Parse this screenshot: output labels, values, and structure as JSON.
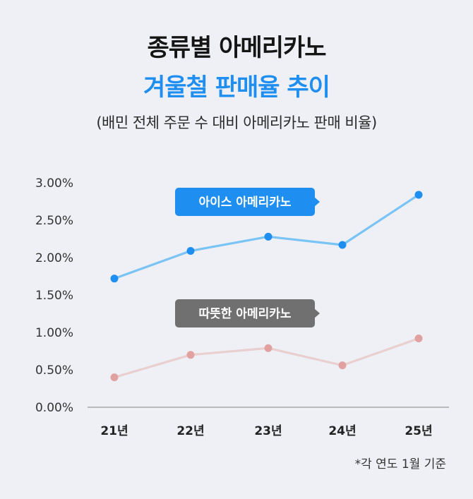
{
  "header": {
    "title_line1": "종류별 아메리카노",
    "title_line2": "겨울철 판매율 추이",
    "subtitle": "(배민 전체 주문 수 대비 아메리카노 판매 비율)"
  },
  "footnote": "*각 연도 1월 기준",
  "chart_data": {
    "type": "line",
    "categories": [
      "21년",
      "22년",
      "23년",
      "24년",
      "25년"
    ],
    "series": [
      {
        "name": "아이스 아메리카노",
        "values": [
          1.72,
          2.09,
          2.28,
          2.17,
          2.84
        ],
        "color": "#79c3f5",
        "point_color": "#1f8ef1",
        "label_bg": "#1f8ef1"
      },
      {
        "name": "따뜻한 아메리카노",
        "values": [
          0.4,
          0.7,
          0.79,
          0.56,
          0.92
        ],
        "color": "#e9cfcf",
        "point_color": "#e1a1a1",
        "label_bg": "#707070"
      }
    ],
    "yticks": [
      "3.00%",
      "2.50%",
      "2.00%",
      "1.50%",
      "1.00%",
      "0.50%",
      "0.00%"
    ],
    "ylim": [
      0,
      3.0
    ],
    "xlabel": "",
    "ylabel": ""
  }
}
